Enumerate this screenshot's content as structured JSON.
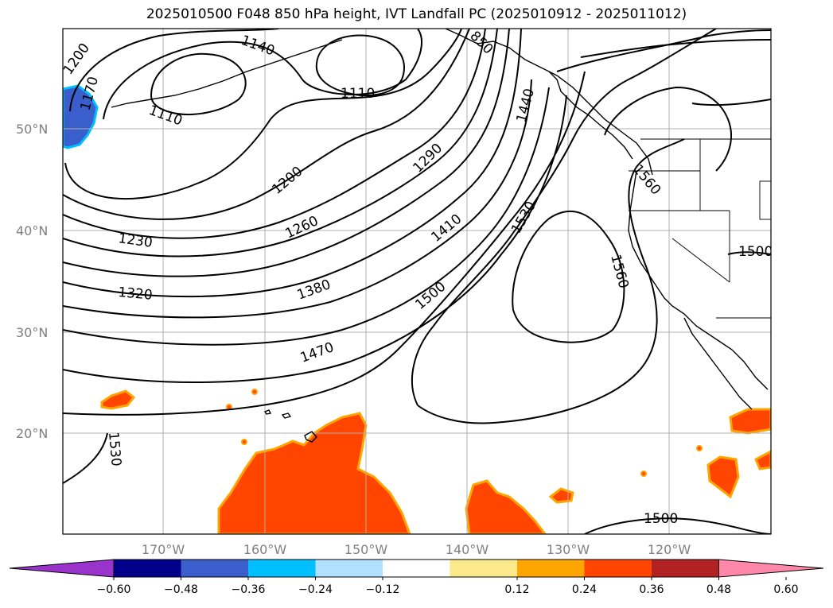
{
  "title": "2025010500 F048 850 hPa height, IVT Landfall PC (2025010912 - 2025011012)",
  "lat_labels": [
    "50°N",
    "40°N",
    "30°N",
    "20°N"
  ],
  "lon_labels": [
    "170°W",
    "160°W",
    "150°W",
    "140°W",
    "130°W",
    "120°W"
  ],
  "contour_labels": [
    "1140",
    "1110",
    "1110",
    "1200",
    "1170",
    "1200",
    "1290",
    "1440",
    "1560",
    "1230",
    "1260",
    "1410",
    "1530",
    "1320",
    "1380",
    "1500",
    "1560",
    "1500",
    "1470",
    "1530",
    "1500",
    "850"
  ],
  "colorbar": {
    "colors": [
      "#9933cc",
      "#00008b",
      "#3a5fcd",
      "#00bfff",
      "#b0e2ff",
      "#ffffff",
      "#fce98a",
      "#ffa500",
      "#ff4500",
      "#b22222",
      "#ff88aa"
    ],
    "ticks": [
      "−0.60",
      "−0.48",
      "−0.36",
      "−0.24",
      "−0.12",
      "0.12",
      "0.24",
      "0.36",
      "0.48",
      "0.60"
    ]
  },
  "field_colors": {
    "positive": "#ff4500",
    "edge": "#ffa500",
    "negative": "#3a5fcd",
    "negative_edge": "#00bfff"
  }
}
